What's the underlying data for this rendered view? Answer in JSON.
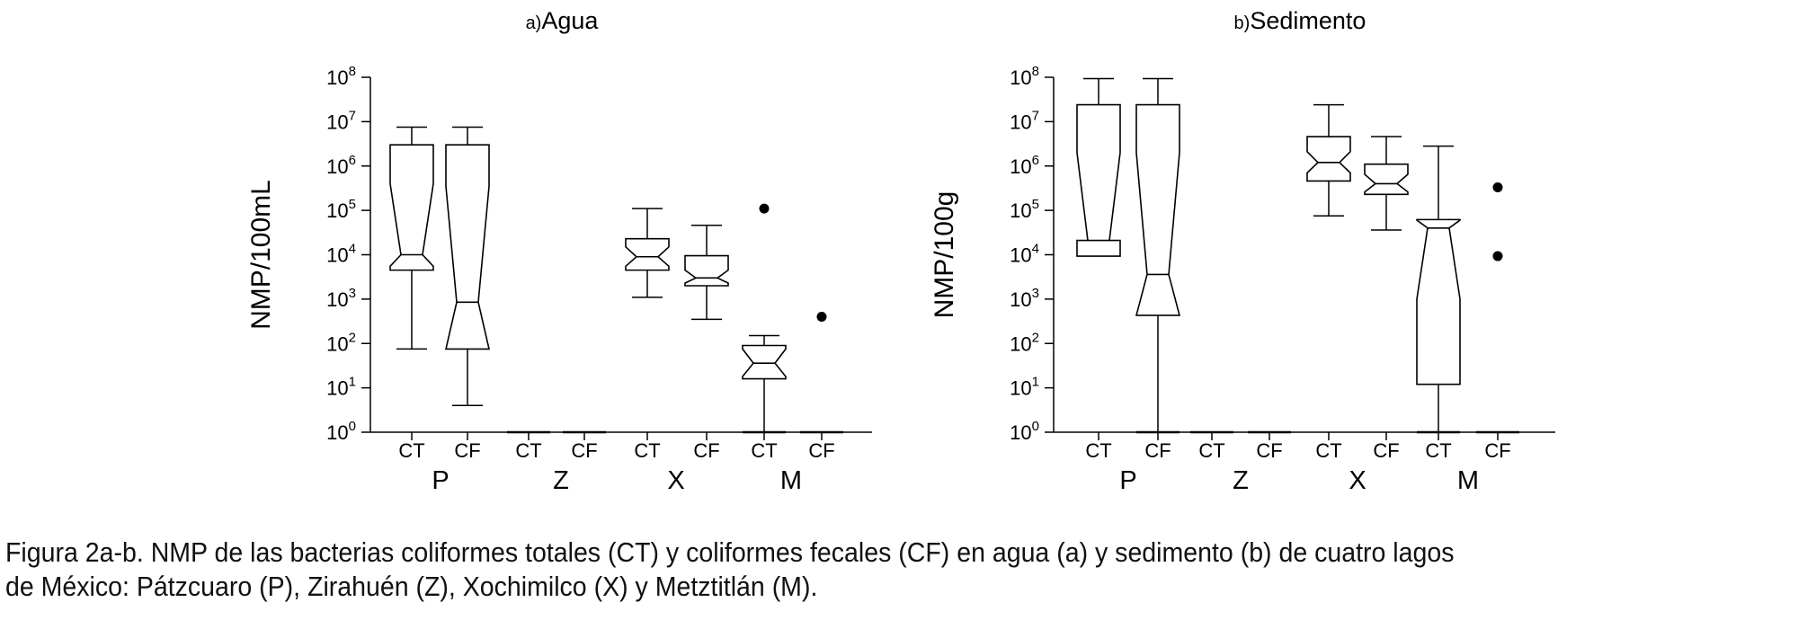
{
  "chart_data": [
    {
      "type": "box",
      "title_prefix": "a)",
      "title": "Agua",
      "ylabel": "NMP/100mL",
      "yscale": "log",
      "ylim": [
        1,
        100000000
      ],
      "ytick_exponents": [
        0,
        1,
        2,
        3,
        4,
        5,
        6,
        7,
        8
      ],
      "ytick_base": "10",
      "groups": [
        "P",
        "Z",
        "X",
        "M"
      ],
      "subcategories": [
        "CT",
        "CF"
      ],
      "boxes": [
        {
          "group": "P",
          "sub": "CT",
          "min": 75,
          "q1": 4500,
          "median": 10000,
          "q3": 3000000,
          "max": 7500000,
          "notch_lo": 5500,
          "notch_hi": 400000,
          "outliers": []
        },
        {
          "group": "P",
          "sub": "CF",
          "min": 4,
          "q1": 75,
          "median": 850,
          "q3": 3000000,
          "max": 7500000,
          "notch_lo": 75,
          "notch_hi": 350000,
          "outliers": []
        },
        {
          "group": "Z",
          "sub": "CT",
          "min": 1,
          "q1": 1,
          "median": 1,
          "q3": 1,
          "max": 1,
          "outliers": []
        },
        {
          "group": "Z",
          "sub": "CF",
          "min": 1,
          "q1": 1,
          "median": 1,
          "q3": 1,
          "max": 1,
          "outliers": []
        },
        {
          "group": "X",
          "sub": "CT",
          "min": 1100,
          "q1": 4500,
          "median": 9000,
          "q3": 23000,
          "max": 110000,
          "notch_lo": 5500,
          "notch_hi": 15000,
          "outliers": []
        },
        {
          "group": "X",
          "sub": "CF",
          "min": 350,
          "q1": 2000,
          "median": 3000,
          "q3": 9500,
          "max": 46000,
          "notch_lo": 2300,
          "notch_hi": 4500,
          "outliers": []
        },
        {
          "group": "M",
          "sub": "CT",
          "min": 1,
          "q1": 16,
          "median": 36,
          "q3": 90,
          "max": 150,
          "notch_lo": 18,
          "notch_hi": 75,
          "outliers": [
            110000
          ]
        },
        {
          "group": "M",
          "sub": "CF",
          "min": 1,
          "q1": 1,
          "median": 1,
          "q3": 1,
          "max": 1,
          "outliers": [
            400
          ]
        }
      ]
    },
    {
      "type": "box",
      "title_prefix": "b)",
      "title": "Sedimento",
      "ylabel": "NMP/100g",
      "yscale": "log",
      "ylim": [
        1,
        100000000
      ],
      "ytick_exponents": [
        0,
        1,
        2,
        3,
        4,
        5,
        6,
        7,
        8
      ],
      "ytick_base": "10",
      "groups": [
        "P",
        "Z",
        "X",
        "M"
      ],
      "subcategories": [
        "CT",
        "CF"
      ],
      "boxes": [
        {
          "group": "P",
          "sub": "CT",
          "min": 9300,
          "q1": 9300,
          "median": 21000,
          "q3": 24000000,
          "max": 93000000,
          "notch_lo": 21000,
          "notch_hi": 2000000,
          "outliers": []
        },
        {
          "group": "P",
          "sub": "CF",
          "min": 1,
          "q1": 430,
          "median": 3600,
          "q3": 24000000,
          "max": 93000000,
          "notch_lo": 430,
          "notch_hi": 2000000,
          "outliers": []
        },
        {
          "group": "Z",
          "sub": "CT",
          "min": 1,
          "q1": 1,
          "median": 1,
          "q3": 1,
          "max": 1,
          "outliers": []
        },
        {
          "group": "Z",
          "sub": "CF",
          "min": 1,
          "q1": 1,
          "median": 1,
          "q3": 1,
          "max": 1,
          "outliers": []
        },
        {
          "group": "X",
          "sub": "CT",
          "min": 75000,
          "q1": 460000,
          "median": 1200000,
          "q3": 4600000,
          "max": 24000000,
          "notch_lo": 700000,
          "notch_hi": 2100000,
          "outliers": []
        },
        {
          "group": "X",
          "sub": "CF",
          "min": 36000,
          "q1": 230000,
          "median": 400000,
          "q3": 1100000,
          "max": 4600000,
          "notch_lo": 260000,
          "notch_hi": 650000,
          "outliers": []
        },
        {
          "group": "M",
          "sub": "CT",
          "min": 1,
          "q1": 12,
          "median": 40000,
          "q3": 62000,
          "max": 2800000,
          "notch_lo": 1000,
          "notch_hi": 60000,
          "outliers": []
        },
        {
          "group": "M",
          "sub": "CF",
          "min": 1,
          "q1": 1,
          "median": 1,
          "q3": 1,
          "max": 1,
          "outliers": [
            9300,
            330000
          ]
        }
      ]
    }
  ],
  "caption": {
    "line1": "Figura 2a-b. NMP de las bacterias coliformes totales (CT) y coliformes fecales (CF) en agua (a) y sedimento (b) de cuatro lagos",
    "line2": "de México: Pátzcuaro (P), Zirahuén (Z), Xochimilco (X) y Metztitlán (M)."
  }
}
